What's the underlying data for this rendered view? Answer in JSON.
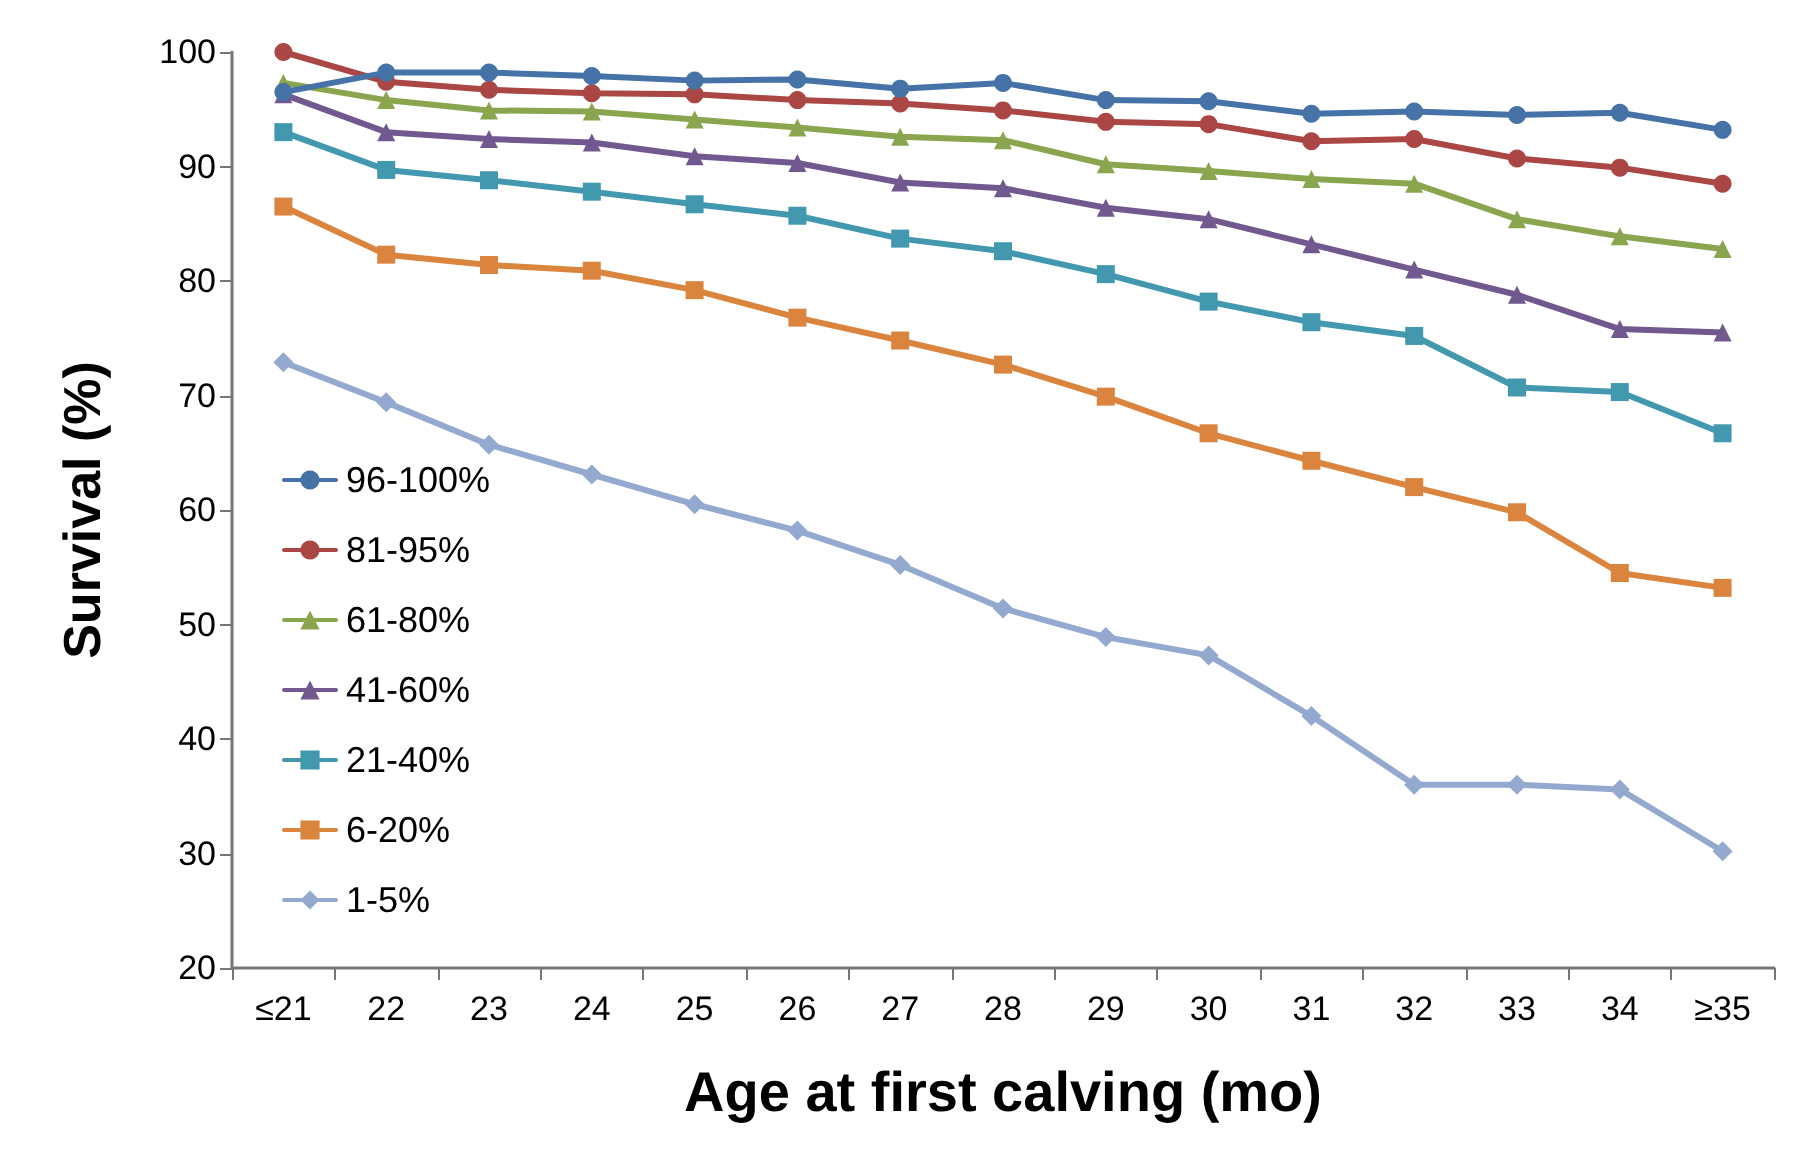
{
  "chart_data": {
    "type": "line",
    "xlabel": "Age at first calving (mo)",
    "ylabel": "Survival (%)",
    "categories": [
      "≤21",
      "22",
      "23",
      "24",
      "25",
      "26",
      "27",
      "28",
      "29",
      "30",
      "31",
      "32",
      "33",
      "34",
      "≥35"
    ],
    "ylim": [
      20,
      100
    ],
    "yticks": [
      20,
      30,
      40,
      50,
      60,
      70,
      80,
      90,
      100
    ],
    "grid": false,
    "legend": "left",
    "series": [
      {
        "name": "96-100%",
        "color": "#4572a7",
        "marker": "circle",
        "values": [
          96.5,
          98.2,
          98.2,
          97.9,
          97.5,
          97.6,
          96.8,
          97.3,
          95.8,
          95.7,
          94.6,
          94.8,
          94.5,
          94.7,
          93.2
        ]
      },
      {
        "name": "81-95%",
        "color": "#aa4643",
        "marker": "circle",
        "values": [
          100,
          97.4,
          96.7,
          96.4,
          96.3,
          95.8,
          95.5,
          94.9,
          93.9,
          93.7,
          92.2,
          92.4,
          90.7,
          89.9,
          88.5
        ]
      },
      {
        "name": "61-80%",
        "color": "#89a54e",
        "marker": "triangle",
        "values": [
          97.3,
          95.8,
          94.9,
          94.8,
          94.1,
          93.4,
          92.6,
          92.3,
          90.2,
          89.6,
          88.9,
          88.5,
          85.4,
          83.9,
          82.8
        ]
      },
      {
        "name": "41-60%",
        "color": "#71588f",
        "marker": "triangle",
        "values": [
          96.3,
          93.0,
          92.4,
          92.1,
          90.9,
          90.3,
          88.6,
          88.1,
          86.4,
          85.4,
          83.2,
          81.0,
          78.8,
          75.8,
          75.5
        ]
      },
      {
        "name": "21-40%",
        "color": "#4198af",
        "marker": "square",
        "values": [
          93.0,
          89.7,
          88.8,
          87.8,
          86.7,
          85.7,
          83.7,
          82.6,
          80.6,
          78.2,
          76.4,
          75.2,
          70.7,
          70.3,
          66.7
        ]
      },
      {
        "name": "6-20%",
        "color": "#db843d",
        "marker": "square",
        "values": [
          86.5,
          82.3,
          81.4,
          80.9,
          79.2,
          76.8,
          74.8,
          72.7,
          69.9,
          66.7,
          64.3,
          62.0,
          59.8,
          54.5,
          53.2
        ]
      },
      {
        "name": "1-5%",
        "color": "#93a9cf",
        "marker": "diamond",
        "values": [
          72.9,
          69.4,
          65.7,
          63.1,
          60.5,
          58.2,
          55.2,
          51.4,
          48.9,
          47.3,
          42.0,
          36.0,
          36.0,
          35.6,
          30.2
        ]
      }
    ]
  }
}
